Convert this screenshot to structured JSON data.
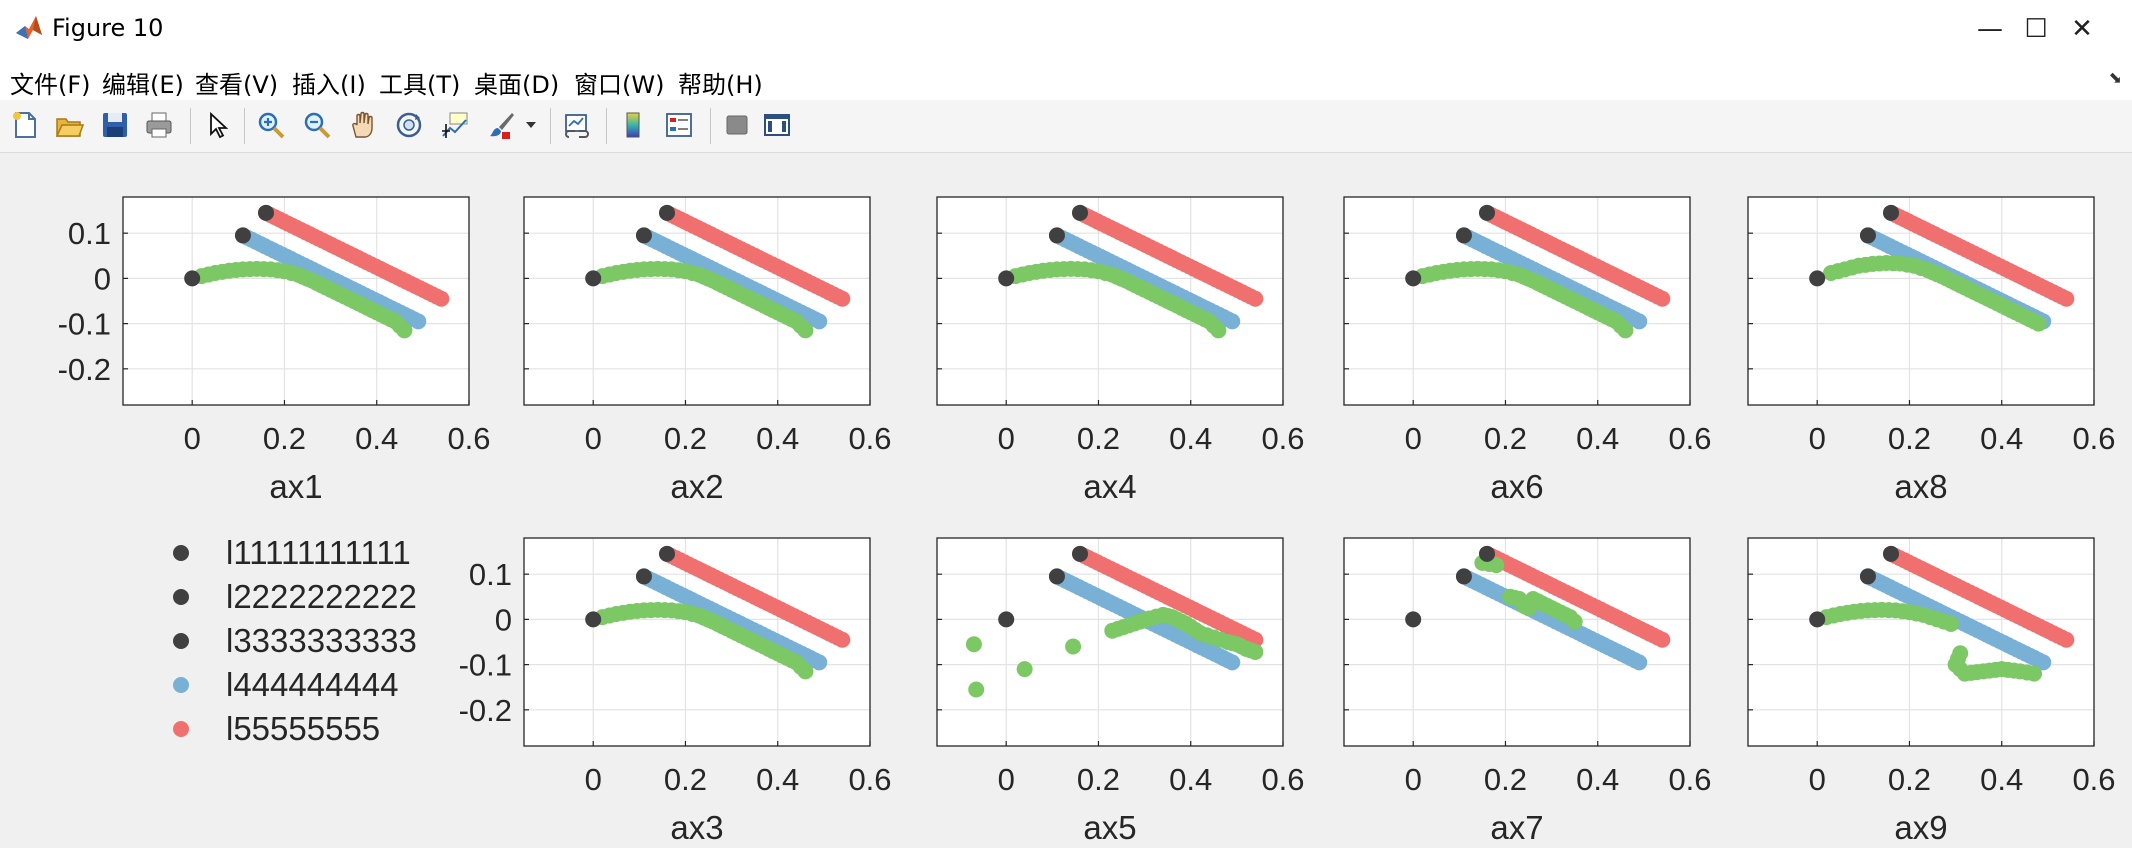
{
  "window": {
    "title": "Figure 10",
    "minimize_glyph": "—",
    "maximize_glyph": "☐",
    "close_glyph": "✕",
    "icon": "matlab-icon"
  },
  "menu": [
    "文件(F)",
    "编辑(E)",
    "查看(V)",
    "插入(I)",
    "工具(T)",
    "桌面(D)",
    "窗口(W)",
    "帮助(H)"
  ],
  "toolbar": [
    "new-figure-icon",
    "open-file-icon",
    "save-icon",
    "print-icon",
    "pointer-icon",
    "zoom-in-icon",
    "zoom-out-icon",
    "pan-icon",
    "rotate-3d-icon",
    "data-cursor-icon",
    "brush-icon",
    "link-plot-icon",
    "colorbar-icon",
    "legend-icon",
    "hide-plot-tools-icon",
    "show-plot-tools-icon"
  ],
  "colors": {
    "black": "#404040",
    "blue": "#78b0d6",
    "red": "#f07070",
    "green": "#7cc865",
    "grid": "#e3e3e3",
    "axes_bg": "#ffffff"
  },
  "legend": {
    "entries": [
      {
        "label": "l11111111111",
        "color": "#404040"
      },
      {
        "label": "l2222222222",
        "color": "#404040"
      },
      {
        "label": "l3333333333",
        "color": "#404040"
      },
      {
        "label": "l444444444",
        "color": "#78b0d6"
      },
      {
        "label": "l55555555",
        "color": "#f07070"
      }
    ]
  },
  "chart_data": {
    "type": "scatter",
    "xlim": [
      -0.15,
      0.6
    ],
    "ylim": [
      -0.28,
      0.18
    ],
    "xticks": [
      0,
      0.2,
      0.4,
      0.6
    ],
    "xticklabels": [
      "0",
      "0.2",
      "0.4",
      "0.6"
    ],
    "yticks": [
      0.1,
      0,
      -0.1,
      -0.2
    ],
    "yticklabels": [
      "0.1",
      "0",
      "-0.1",
      "-0.2"
    ],
    "grid": true,
    "legend_position": "bottom-left",
    "black_points": [
      [
        0,
        0
      ],
      [
        0.11,
        0.095
      ],
      [
        0.16,
        0.145
      ]
    ],
    "blue_line": {
      "from": [
        0.11,
        0.095
      ],
      "to": [
        0.49,
        -0.095
      ]
    },
    "red_line": {
      "from": [
        0.16,
        0.145
      ],
      "to": [
        0.54,
        -0.045
      ]
    },
    "axes": [
      {
        "label": "ax1",
        "show_yticklabels": true,
        "green": [
          [
            0.02,
            0.005
          ],
          [
            0.05,
            0.012
          ],
          [
            0.08,
            0.017
          ],
          [
            0.11,
            0.02
          ],
          [
            0.14,
            0.021
          ],
          [
            0.17,
            0.02
          ],
          [
            0.2,
            0.016
          ],
          [
            0.23,
            0.008
          ],
          [
            0.26,
            -0.005
          ],
          [
            0.29,
            -0.02
          ],
          [
            0.32,
            -0.035
          ],
          [
            0.35,
            -0.05
          ],
          [
            0.38,
            -0.065
          ],
          [
            0.41,
            -0.08
          ],
          [
            0.44,
            -0.095
          ],
          [
            0.46,
            -0.115
          ]
        ]
      },
      {
        "label": "ax2",
        "show_yticklabels": false,
        "green": [
          [
            0.02,
            0.005
          ],
          [
            0.05,
            0.012
          ],
          [
            0.08,
            0.017
          ],
          [
            0.11,
            0.02
          ],
          [
            0.14,
            0.021
          ],
          [
            0.17,
            0.02
          ],
          [
            0.2,
            0.016
          ],
          [
            0.23,
            0.008
          ],
          [
            0.26,
            -0.005
          ],
          [
            0.29,
            -0.02
          ],
          [
            0.32,
            -0.035
          ],
          [
            0.35,
            -0.05
          ],
          [
            0.38,
            -0.065
          ],
          [
            0.41,
            -0.08
          ],
          [
            0.44,
            -0.095
          ],
          [
            0.46,
            -0.115
          ]
        ]
      },
      {
        "label": "ax4",
        "show_yticklabels": false,
        "green": [
          [
            0.02,
            0.005
          ],
          [
            0.05,
            0.012
          ],
          [
            0.08,
            0.017
          ],
          [
            0.11,
            0.02
          ],
          [
            0.14,
            0.021
          ],
          [
            0.17,
            0.02
          ],
          [
            0.2,
            0.016
          ],
          [
            0.23,
            0.008
          ],
          [
            0.26,
            -0.005
          ],
          [
            0.29,
            -0.02
          ],
          [
            0.32,
            -0.035
          ],
          [
            0.35,
            -0.05
          ],
          [
            0.38,
            -0.065
          ],
          [
            0.41,
            -0.08
          ],
          [
            0.44,
            -0.095
          ],
          [
            0.46,
            -0.115
          ]
        ]
      },
      {
        "label": "ax6",
        "show_yticklabels": false,
        "green": [
          [
            0.02,
            0.005
          ],
          [
            0.05,
            0.012
          ],
          [
            0.08,
            0.017
          ],
          [
            0.11,
            0.02
          ],
          [
            0.14,
            0.021
          ],
          [
            0.17,
            0.02
          ],
          [
            0.2,
            0.016
          ],
          [
            0.23,
            0.008
          ],
          [
            0.26,
            -0.005
          ],
          [
            0.29,
            -0.02
          ],
          [
            0.32,
            -0.035
          ],
          [
            0.35,
            -0.05
          ],
          [
            0.38,
            -0.065
          ],
          [
            0.41,
            -0.08
          ],
          [
            0.44,
            -0.095
          ],
          [
            0.46,
            -0.115
          ]
        ]
      },
      {
        "label": "ax8",
        "show_yticklabels": false,
        "green": [
          [
            0.03,
            0.012
          ],
          [
            0.06,
            0.02
          ],
          [
            0.09,
            0.028
          ],
          [
            0.12,
            0.032
          ],
          [
            0.15,
            0.034
          ],
          [
            0.18,
            0.033
          ],
          [
            0.21,
            0.028
          ],
          [
            0.24,
            0.018
          ],
          [
            0.27,
            0.005
          ],
          [
            0.3,
            -0.01
          ],
          [
            0.33,
            -0.025
          ],
          [
            0.36,
            -0.04
          ],
          [
            0.39,
            -0.055
          ],
          [
            0.42,
            -0.07
          ],
          [
            0.45,
            -0.085
          ],
          [
            0.48,
            -0.1
          ]
        ]
      },
      {
        "label": "ax3",
        "show_yticklabels": true,
        "green": [
          [
            0.02,
            0.005
          ],
          [
            0.05,
            0.012
          ],
          [
            0.08,
            0.017
          ],
          [
            0.11,
            0.02
          ],
          [
            0.14,
            0.021
          ],
          [
            0.17,
            0.02
          ],
          [
            0.2,
            0.016
          ],
          [
            0.23,
            0.008
          ],
          [
            0.26,
            -0.005
          ],
          [
            0.29,
            -0.02
          ],
          [
            0.32,
            -0.035
          ],
          [
            0.35,
            -0.05
          ],
          [
            0.38,
            -0.065
          ],
          [
            0.41,
            -0.08
          ],
          [
            0.44,
            -0.095
          ],
          [
            0.46,
            -0.115
          ]
        ]
      },
      {
        "label": "ax5",
        "show_yticklabels": false,
        "green": [
          [
            -0.07,
            -0.055
          ],
          [
            -0.065,
            -0.155
          ],
          [
            0.04,
            -0.11
          ],
          [
            0.145,
            -0.06
          ],
          [
            0.23,
            -0.025
          ],
          [
            0.29,
            -0.005
          ],
          [
            0.31,
            0.002
          ],
          [
            0.34,
            0.01
          ],
          [
            0.36,
            0.005
          ],
          [
            0.39,
            -0.01
          ],
          [
            0.42,
            -0.03
          ],
          [
            0.45,
            -0.04
          ],
          [
            0.48,
            -0.05
          ],
          [
            0.5,
            -0.055
          ],
          [
            0.52,
            -0.065
          ],
          [
            0.54,
            -0.072
          ]
        ]
      },
      {
        "label": "ax7",
        "show_yticklabels": false,
        "green": [
          [
            0.15,
            0.125
          ],
          [
            0.18,
            0.12
          ],
          [
            0.21,
            0.05
          ],
          [
            0.23,
            0.045
          ],
          [
            0.24,
            0.03
          ],
          [
            0.25,
            0.025
          ],
          [
            0.26,
            0.045
          ],
          [
            0.27,
            0.04
          ],
          [
            0.28,
            0.035
          ],
          [
            0.29,
            0.03
          ],
          [
            0.3,
            0.025
          ],
          [
            0.31,
            0.02
          ],
          [
            0.32,
            0.015
          ],
          [
            0.33,
            0.01
          ],
          [
            0.34,
            0.005
          ],
          [
            0.35,
            -0.005
          ]
        ]
      },
      {
        "label": "ax9",
        "show_yticklabels": false,
        "green": [
          [
            0.02,
            0.005
          ],
          [
            0.05,
            0.012
          ],
          [
            0.08,
            0.017
          ],
          [
            0.11,
            0.02
          ],
          [
            0.14,
            0.021
          ],
          [
            0.17,
            0.02
          ],
          [
            0.2,
            0.016
          ],
          [
            0.23,
            0.01
          ],
          [
            0.26,
            0.0
          ],
          [
            0.29,
            -0.01
          ],
          [
            0.31,
            -0.075
          ],
          [
            0.3,
            -0.1
          ],
          [
            0.32,
            -0.12
          ],
          [
            0.36,
            -0.115
          ],
          [
            0.4,
            -0.11
          ],
          [
            0.44,
            -0.115
          ],
          [
            0.47,
            -0.12
          ]
        ]
      }
    ]
  }
}
